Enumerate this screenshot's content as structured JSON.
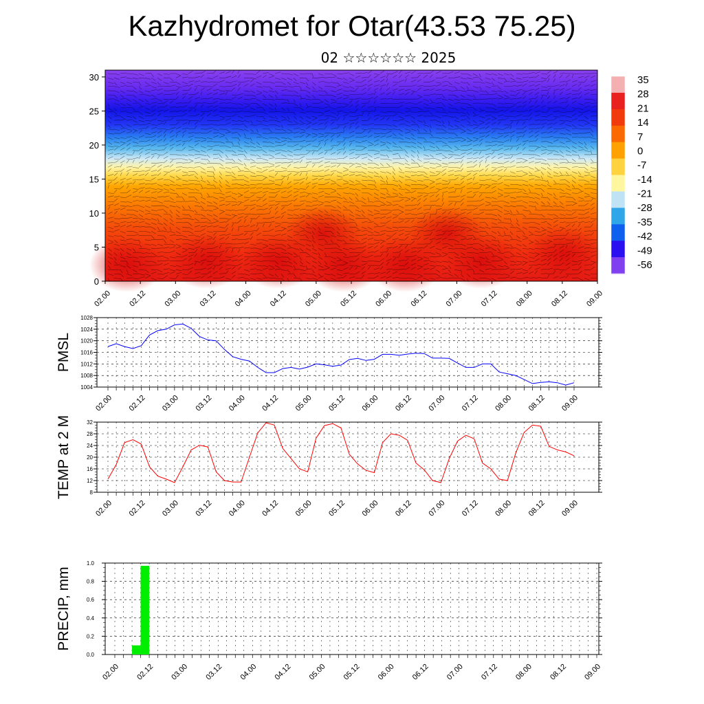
{
  "page": {
    "title": "Kazhydromet for Otar(43.53 75.25)",
    "subtitle": "02 ☆☆☆☆☆☆ 2025"
  },
  "colors": {
    "pmsl_line": "#0000ff",
    "temp_line": "#ff0000",
    "precip_bar": "#00ee00",
    "colorbar": [
      "#f4b0b0",
      "#e8201e",
      "#f23b0c",
      "#fb6a00",
      "#ffa100",
      "#ffd340",
      "#fff7a0",
      "#bfe3f5",
      "#2fa6e8",
      "#1060f0",
      "#2a10f0",
      "#8040f0"
    ]
  },
  "chart_data": [
    {
      "type": "heatmap",
      "name": "upper-air-section",
      "x_ticks": [
        "02.00",
        "02.12",
        "03.00",
        "03.12",
        "04.00",
        "04.12",
        "05.00",
        "05.12",
        "06.00",
        "06.12",
        "07.00",
        "07.12",
        "08.00",
        "08.12",
        "09.00"
      ],
      "y_ticks": [
        "0",
        "5",
        "10",
        "15",
        "20",
        "25",
        "30"
      ],
      "ylim": [
        0,
        31
      ],
      "colorbar_labels": [
        "35",
        "28",
        "21",
        "14",
        "7",
        "0",
        "-7",
        "-14",
        "-21",
        "-28",
        "-35",
        "-42",
        "-49",
        "-56"
      ]
    },
    {
      "type": "line",
      "name": "pmsl",
      "ylabel": "PMSL",
      "ylim": [
        1004,
        1028
      ],
      "y_ticks": [
        "1004",
        "1008",
        "1012",
        "1016",
        "1020",
        "1024",
        "1028"
      ],
      "x_ticks": [
        "02.00",
        "02.12",
        "03.00",
        "03.12",
        "04.00",
        "04.12",
        "05.00",
        "05.12",
        "06.00",
        "06.12",
        "07.00",
        "07.12",
        "08.00",
        "08.12",
        "09.00"
      ],
      "values": [
        1018.0,
        1019.0,
        1018.0,
        1017.3,
        1018.3,
        1022.0,
        1023.5,
        1024.0,
        1025.5,
        1025.8,
        1024.3,
        1021.5,
        1020.3,
        1020.0,
        1017.0,
        1014.5,
        1013.6,
        1013.0,
        1010.8,
        1009.0,
        1009.0,
        1010.4,
        1010.8,
        1010.2,
        1010.9,
        1012.0,
        1011.7,
        1011.2,
        1011.6,
        1013.5,
        1013.9,
        1013.2,
        1013.6,
        1015.3,
        1015.3,
        1015.0,
        1015.4,
        1015.7,
        1015.6,
        1014.0,
        1014.0,
        1013.9,
        1012.3,
        1010.8,
        1010.8,
        1012.0,
        1012.0,
        1009.2,
        1008.6,
        1008.0,
        1006.6,
        1005.2,
        1005.6,
        1005.8,
        1005.5,
        1004.7,
        1005.5
      ]
    },
    {
      "type": "line",
      "name": "temperature",
      "ylabel": "TEMP at 2 M",
      "ylim": [
        8,
        32
      ],
      "y_ticks": [
        "8",
        "12",
        "16",
        "20",
        "24",
        "28",
        "32"
      ],
      "x_ticks": [
        "02.00",
        "02.12",
        "03.00",
        "03.12",
        "04.00",
        "04.12",
        "05.00",
        "05.12",
        "06.00",
        "06.12",
        "07.00",
        "07.12",
        "08.00",
        "08.12",
        "09.00"
      ],
      "values": [
        12.5,
        17.5,
        25.0,
        26.0,
        24.5,
        16.7,
        13.5,
        12.5,
        11.3,
        16.7,
        22.5,
        24.1,
        23.5,
        15.0,
        12.0,
        11.5,
        11.5,
        20.0,
        28.3,
        31.8,
        31.0,
        23.0,
        19.5,
        16.0,
        15.0,
        26.5,
        30.8,
        31.5,
        30.0,
        21.0,
        17.7,
        15.5,
        14.7,
        25.0,
        28.0,
        27.5,
        25.8,
        18.0,
        15.7,
        12.0,
        11.3,
        19.5,
        25.5,
        27.5,
        26.3,
        18.0,
        16.0,
        12.5,
        12.0,
        21.5,
        28.5,
        31.0,
        30.6,
        23.7,
        22.5,
        21.8,
        20.5
      ]
    },
    {
      "type": "bar",
      "name": "precipitation",
      "ylabel": "PRECIP, mm",
      "ylim": [
        0,
        1.0
      ],
      "y_ticks": [
        "0.0",
        "0.2",
        "0.4",
        "0.6",
        "0.8",
        "1.0"
      ],
      "x_ticks": [
        "02.00",
        "02.12",
        "03.00",
        "03.12",
        "04.00",
        "04.12",
        "05.00",
        "05.12",
        "06.00",
        "06.12",
        "07.00",
        "07.12",
        "08.00",
        "08.12",
        "09.00"
      ],
      "bars": [
        {
          "x_hours": 9,
          "value": 0.1
        },
        {
          "x_hours": 12,
          "value": 0.97
        }
      ]
    }
  ]
}
